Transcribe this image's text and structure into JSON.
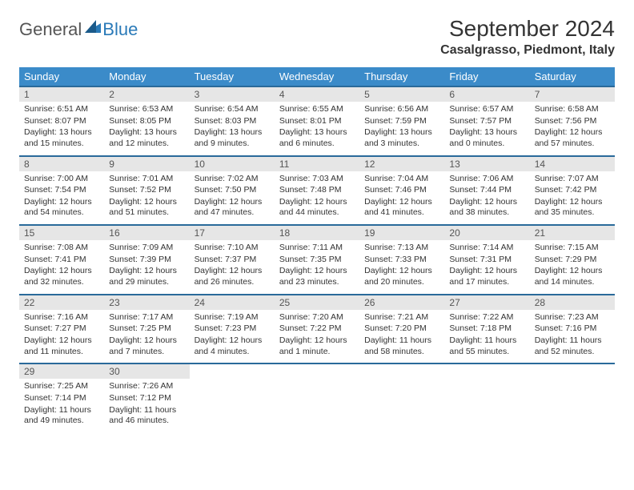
{
  "logo": {
    "general": "General",
    "blue": "Blue"
  },
  "title": "September 2024",
  "location": "Casalgrasso, Piedmont, Italy",
  "header_bg": "#3b8bc9",
  "daynum_bg": "#e6e6e6",
  "rule_color": "#2a6a9a",
  "dow": [
    "Sunday",
    "Monday",
    "Tuesday",
    "Wednesday",
    "Thursday",
    "Friday",
    "Saturday"
  ],
  "weeks": [
    [
      {
        "n": "1",
        "sr": "Sunrise: 6:51 AM",
        "ss": "Sunset: 8:07 PM",
        "dl": "Daylight: 13 hours and 15 minutes."
      },
      {
        "n": "2",
        "sr": "Sunrise: 6:53 AM",
        "ss": "Sunset: 8:05 PM",
        "dl": "Daylight: 13 hours and 12 minutes."
      },
      {
        "n": "3",
        "sr": "Sunrise: 6:54 AM",
        "ss": "Sunset: 8:03 PM",
        "dl": "Daylight: 13 hours and 9 minutes."
      },
      {
        "n": "4",
        "sr": "Sunrise: 6:55 AM",
        "ss": "Sunset: 8:01 PM",
        "dl": "Daylight: 13 hours and 6 minutes."
      },
      {
        "n": "5",
        "sr": "Sunrise: 6:56 AM",
        "ss": "Sunset: 7:59 PM",
        "dl": "Daylight: 13 hours and 3 minutes."
      },
      {
        "n": "6",
        "sr": "Sunrise: 6:57 AM",
        "ss": "Sunset: 7:57 PM",
        "dl": "Daylight: 13 hours and 0 minutes."
      },
      {
        "n": "7",
        "sr": "Sunrise: 6:58 AM",
        "ss": "Sunset: 7:56 PM",
        "dl": "Daylight: 12 hours and 57 minutes."
      }
    ],
    [
      {
        "n": "8",
        "sr": "Sunrise: 7:00 AM",
        "ss": "Sunset: 7:54 PM",
        "dl": "Daylight: 12 hours and 54 minutes."
      },
      {
        "n": "9",
        "sr": "Sunrise: 7:01 AM",
        "ss": "Sunset: 7:52 PM",
        "dl": "Daylight: 12 hours and 51 minutes."
      },
      {
        "n": "10",
        "sr": "Sunrise: 7:02 AM",
        "ss": "Sunset: 7:50 PM",
        "dl": "Daylight: 12 hours and 47 minutes."
      },
      {
        "n": "11",
        "sr": "Sunrise: 7:03 AM",
        "ss": "Sunset: 7:48 PM",
        "dl": "Daylight: 12 hours and 44 minutes."
      },
      {
        "n": "12",
        "sr": "Sunrise: 7:04 AM",
        "ss": "Sunset: 7:46 PM",
        "dl": "Daylight: 12 hours and 41 minutes."
      },
      {
        "n": "13",
        "sr": "Sunrise: 7:06 AM",
        "ss": "Sunset: 7:44 PM",
        "dl": "Daylight: 12 hours and 38 minutes."
      },
      {
        "n": "14",
        "sr": "Sunrise: 7:07 AM",
        "ss": "Sunset: 7:42 PM",
        "dl": "Daylight: 12 hours and 35 minutes."
      }
    ],
    [
      {
        "n": "15",
        "sr": "Sunrise: 7:08 AM",
        "ss": "Sunset: 7:41 PM",
        "dl": "Daylight: 12 hours and 32 minutes."
      },
      {
        "n": "16",
        "sr": "Sunrise: 7:09 AM",
        "ss": "Sunset: 7:39 PM",
        "dl": "Daylight: 12 hours and 29 minutes."
      },
      {
        "n": "17",
        "sr": "Sunrise: 7:10 AM",
        "ss": "Sunset: 7:37 PM",
        "dl": "Daylight: 12 hours and 26 minutes."
      },
      {
        "n": "18",
        "sr": "Sunrise: 7:11 AM",
        "ss": "Sunset: 7:35 PM",
        "dl": "Daylight: 12 hours and 23 minutes."
      },
      {
        "n": "19",
        "sr": "Sunrise: 7:13 AM",
        "ss": "Sunset: 7:33 PM",
        "dl": "Daylight: 12 hours and 20 minutes."
      },
      {
        "n": "20",
        "sr": "Sunrise: 7:14 AM",
        "ss": "Sunset: 7:31 PM",
        "dl": "Daylight: 12 hours and 17 minutes."
      },
      {
        "n": "21",
        "sr": "Sunrise: 7:15 AM",
        "ss": "Sunset: 7:29 PM",
        "dl": "Daylight: 12 hours and 14 minutes."
      }
    ],
    [
      {
        "n": "22",
        "sr": "Sunrise: 7:16 AM",
        "ss": "Sunset: 7:27 PM",
        "dl": "Daylight: 12 hours and 11 minutes."
      },
      {
        "n": "23",
        "sr": "Sunrise: 7:17 AM",
        "ss": "Sunset: 7:25 PM",
        "dl": "Daylight: 12 hours and 7 minutes."
      },
      {
        "n": "24",
        "sr": "Sunrise: 7:19 AM",
        "ss": "Sunset: 7:23 PM",
        "dl": "Daylight: 12 hours and 4 minutes."
      },
      {
        "n": "25",
        "sr": "Sunrise: 7:20 AM",
        "ss": "Sunset: 7:22 PM",
        "dl": "Daylight: 12 hours and 1 minute."
      },
      {
        "n": "26",
        "sr": "Sunrise: 7:21 AM",
        "ss": "Sunset: 7:20 PM",
        "dl": "Daylight: 11 hours and 58 minutes."
      },
      {
        "n": "27",
        "sr": "Sunrise: 7:22 AM",
        "ss": "Sunset: 7:18 PM",
        "dl": "Daylight: 11 hours and 55 minutes."
      },
      {
        "n": "28",
        "sr": "Sunrise: 7:23 AM",
        "ss": "Sunset: 7:16 PM",
        "dl": "Daylight: 11 hours and 52 minutes."
      }
    ],
    [
      {
        "n": "29",
        "sr": "Sunrise: 7:25 AM",
        "ss": "Sunset: 7:14 PM",
        "dl": "Daylight: 11 hours and 49 minutes."
      },
      {
        "n": "30",
        "sr": "Sunrise: 7:26 AM",
        "ss": "Sunset: 7:12 PM",
        "dl": "Daylight: 11 hours and 46 minutes."
      },
      null,
      null,
      null,
      null,
      null
    ]
  ]
}
